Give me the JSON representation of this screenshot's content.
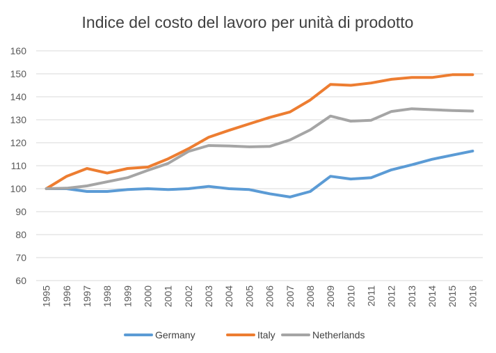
{
  "chart_data": {
    "type": "line",
    "title": "Indice del costo del lavoro per unità di prodotto",
    "xlabel": "",
    "ylabel": "",
    "ylim": [
      60,
      160
    ],
    "yticks": [
      60,
      70,
      80,
      90,
      100,
      110,
      120,
      130,
      140,
      150,
      160
    ],
    "grid": true,
    "legend_position": "bottom",
    "x": [
      "1995",
      "1996",
      "1997",
      "1998",
      "1999",
      "2000",
      "2001",
      "2002",
      "2003",
      "2004",
      "2005",
      "2006",
      "2007",
      "2008",
      "2009",
      "2010",
      "2011",
      "2012",
      "2013",
      "2014",
      "2015",
      "2016"
    ],
    "series": [
      {
        "name": "Germany",
        "color": "#5b9bd5",
        "values": [
          100,
          100,
          98.8,
          98.8,
          99.6,
          100,
          99.6,
          100,
          101,
          100,
          99.6,
          97.8,
          96.4,
          98.8,
          105.4,
          104.2,
          104.8,
          108.2,
          110.4,
          112.8,
          114.6,
          116.4
        ]
      },
      {
        "name": "Italy",
        "color": "#ed7d31",
        "values": [
          100,
          105.4,
          108.8,
          106.8,
          108.8,
          109.4,
          113,
          117.4,
          122.4,
          125.4,
          128.2,
          131,
          133.4,
          138.6,
          145.4,
          145,
          146,
          147.6,
          148.4,
          148.4,
          149.6,
          149.6
        ]
      },
      {
        "name": "Netherlands",
        "color": "#a5a5a5",
        "values": [
          100,
          100.2,
          101.2,
          103,
          104.8,
          108,
          111,
          116.2,
          118.8,
          118.6,
          118.2,
          118.4,
          121.2,
          125.6,
          131.6,
          129.4,
          129.8,
          133.6,
          134.8,
          134.4,
          134,
          133.8
        ]
      }
    ]
  }
}
